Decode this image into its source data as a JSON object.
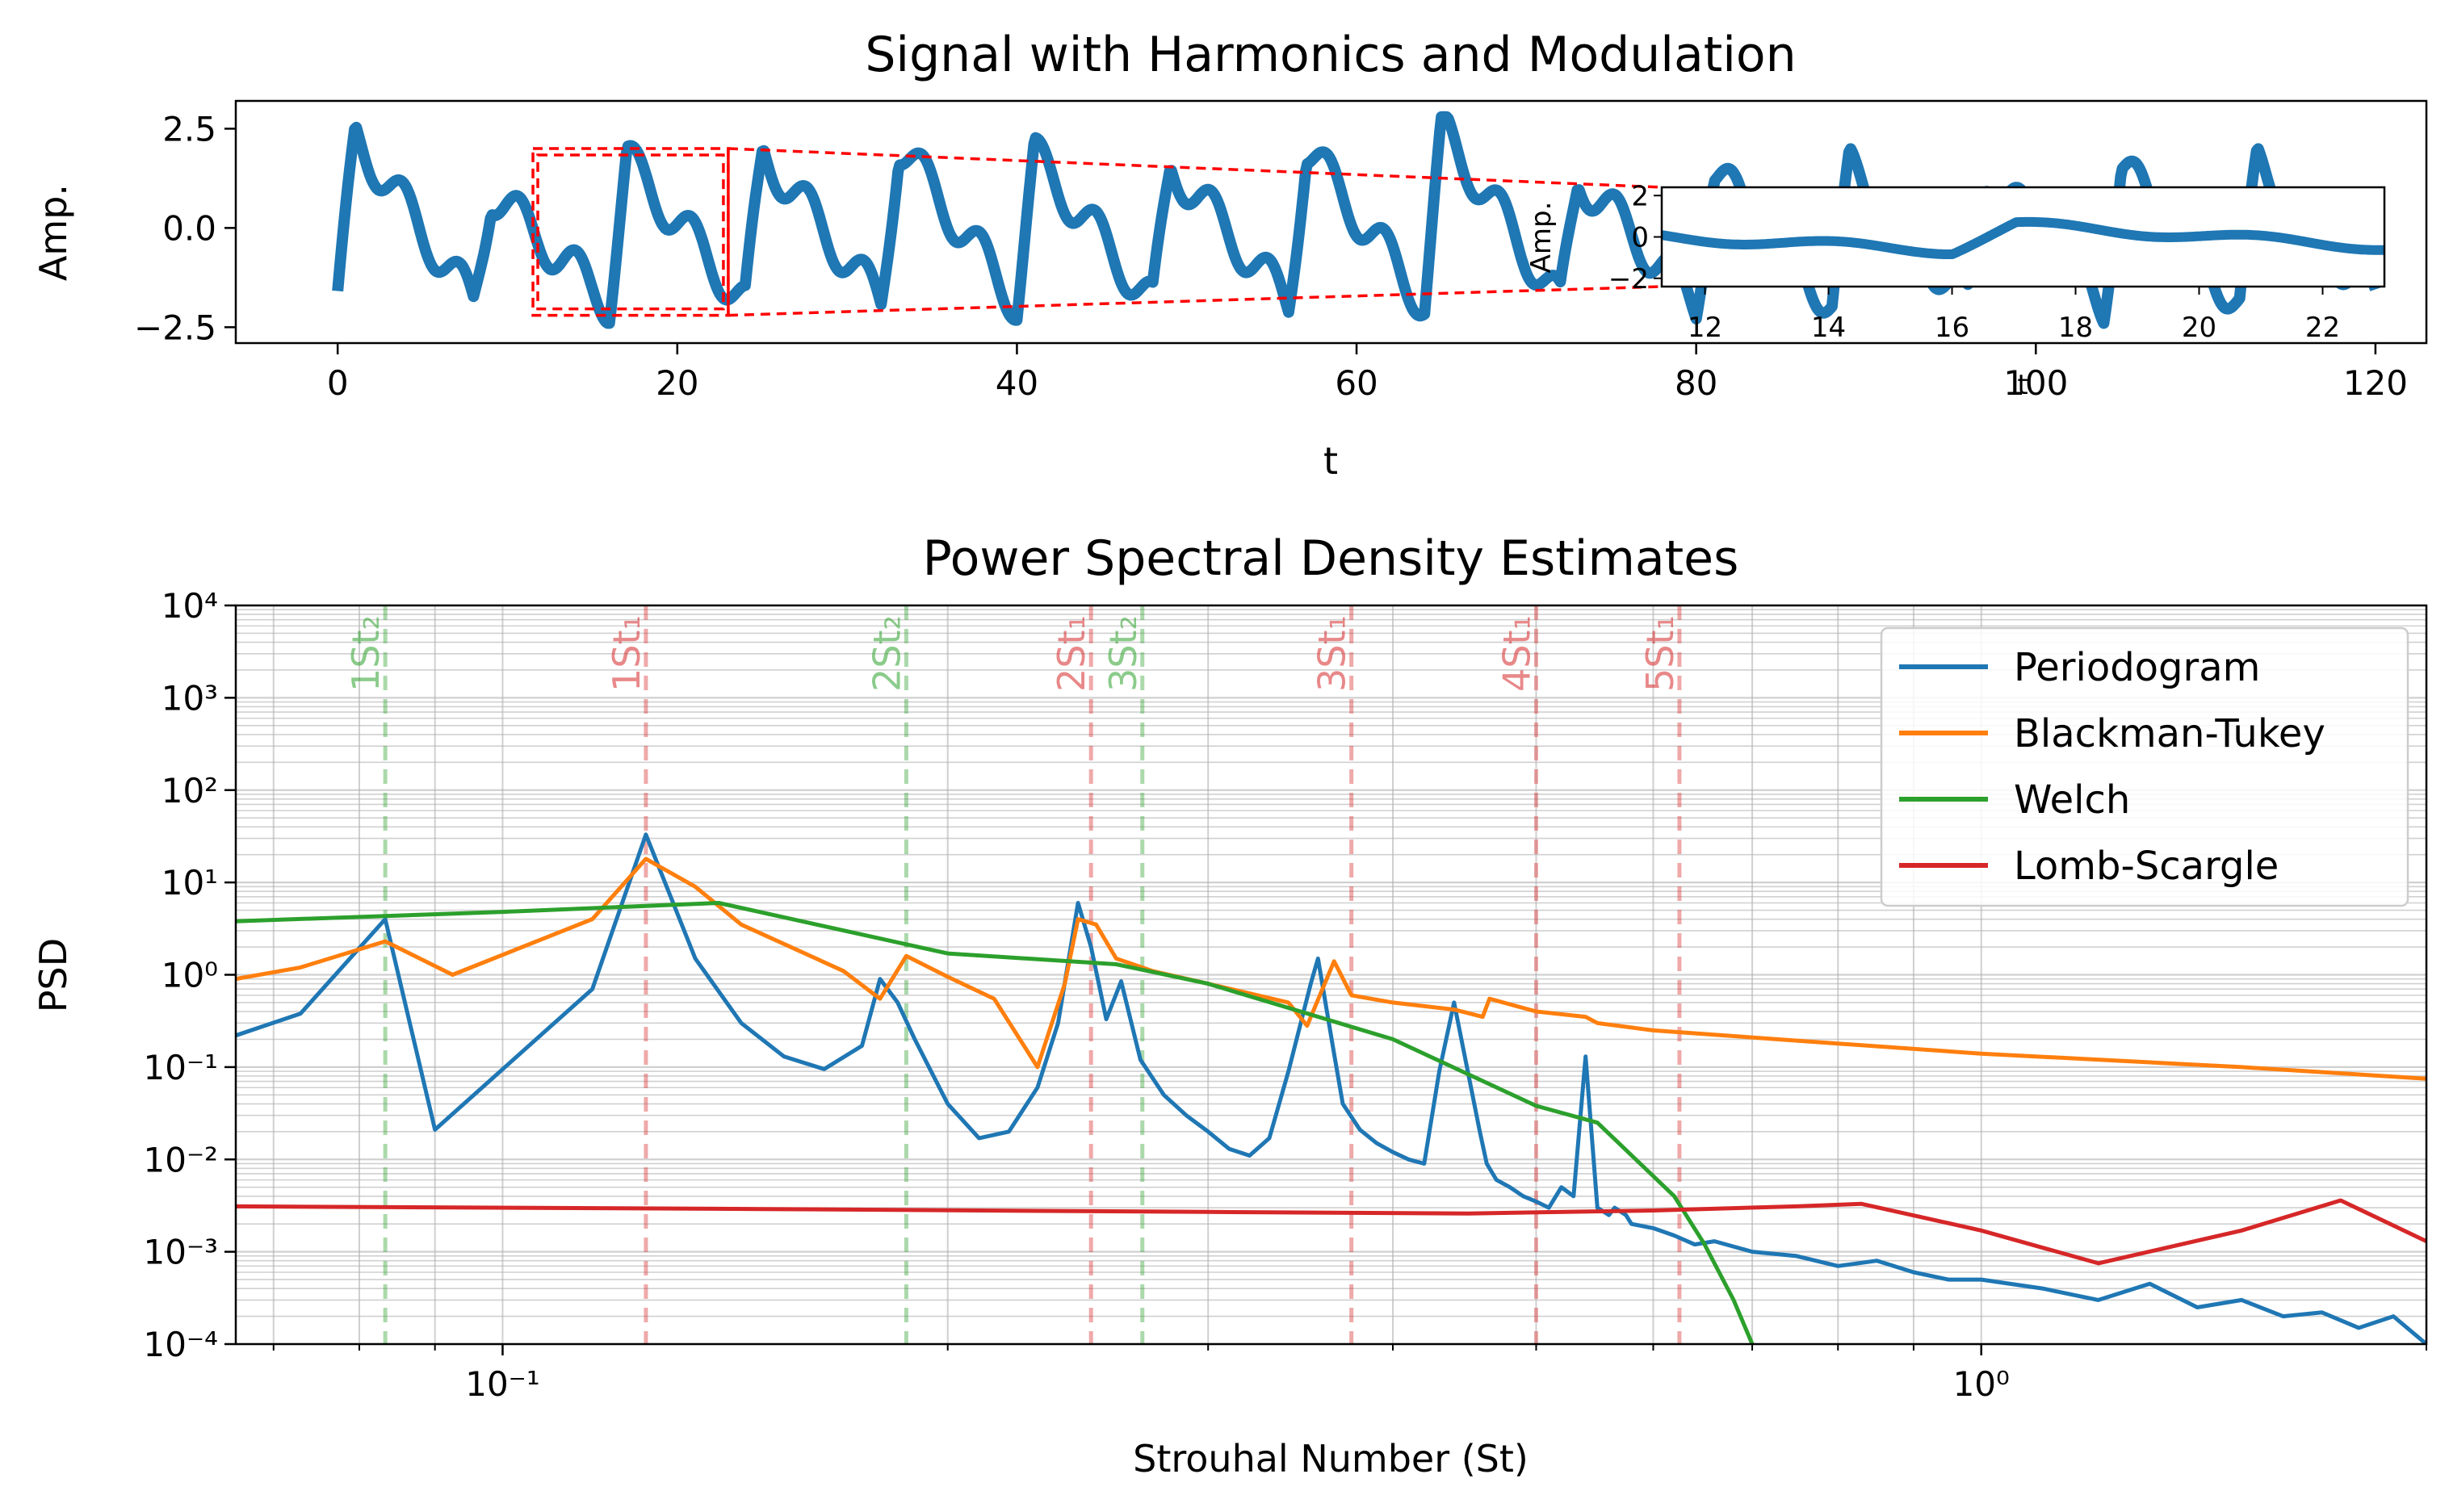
{
  "chart_data": [
    {
      "type": "line",
      "title": "Signal with Harmonics and Modulation",
      "xlabel": "t",
      "ylabel": "Amp.",
      "xlim": [
        -6,
        123
      ],
      "ylim": [
        -2.9,
        3.2
      ],
      "xticks": [
        0,
        20,
        40,
        60,
        80,
        100,
        120
      ],
      "yticks": [
        2.5,
        0.0,
        -2.5
      ],
      "xtick_labels": [
        "0",
        "20",
        "40",
        "60",
        "80",
        "100",
        "120"
      ],
      "ytick_labels": [
        "2.5",
        "0.0",
        "−2.5"
      ],
      "grid": false,
      "series": [
        {
          "color": "#1f77b4",
          "period": 8,
          "pulse_heights": [
            2.3,
            0.9,
            1.7,
            1.9,
            2.1,
            1.8,
            1.6,
            2.0,
            2.5,
            1.3,
            1.4,
            1.5,
            1.4,
            1.5,
            1.6,
            1.7
          ]
        }
      ],
      "zoom_region": {
        "x": [
          11.5,
          23
        ],
        "y": [
          -2.2,
          2.0
        ],
        "color": "#ff0000"
      },
      "inset": {
        "xlabel": "t",
        "ylabel": "Amp.",
        "xlim": [
          11.3,
          23.0
        ],
        "ylim": [
          -2.4,
          2.4
        ],
        "xticks": [
          12,
          14,
          16,
          18,
          20,
          22
        ],
        "yticks": [
          2,
          0,
          -2
        ],
        "xtick_labels": [
          "12",
          "14",
          "16",
          "18",
          "20",
          "22"
        ],
        "ytick_labels": [
          "2",
          "0",
          "−2"
        ]
      }
    },
    {
      "type": "line",
      "title": "Power Spectral Density Estimates",
      "xlabel": "Strouhal Number (St)",
      "ylabel": "PSD",
      "xscale": "log",
      "yscale": "log",
      "xlim": [
        0.066,
        2.0
      ],
      "ylim": [
        0.0001,
        10000
      ],
      "xtick_labels": [
        "10⁻¹",
        "10⁰"
      ],
      "ytick_labels": [
        "10⁴",
        "10³",
        "10²",
        "10¹",
        "10⁰",
        "10⁻¹",
        "10⁻²",
        "10⁻³",
        "10⁻⁴"
      ],
      "grid": true,
      "legend": "top-right",
      "series": [
        {
          "name": "Periodogram",
          "color": "#1f77b4",
          "x": [
            0.066,
            0.073,
            0.0833,
            0.09,
            0.115,
            0.125,
            0.135,
            0.145,
            0.155,
            0.165,
            0.175,
            0.18,
            0.185,
            0.19,
            0.2,
            0.21,
            0.22,
            0.23,
            0.2375,
            0.245,
            0.25,
            0.256,
            0.262,
            0.27,
            0.28,
            0.29,
            0.3,
            0.31,
            0.32,
            0.33,
            0.34,
            0.352,
            0.356,
            0.365,
            0.37,
            0.38,
            0.39,
            0.4,
            0.41,
            0.42,
            0.43,
            0.44,
            0.458,
            0.463,
            0.47,
            0.48,
            0.49,
            0.5,
            0.51,
            0.52,
            0.53,
            0.54,
            0.55,
            0.56,
            0.565,
            0.575,
            0.58,
            0.6,
            0.62,
            0.64,
            0.66,
            0.7,
            0.75,
            0.8,
            0.85,
            0.9,
            0.95,
            1.0,
            1.1,
            1.2,
            1.3,
            1.4,
            1.5,
            1.6,
            1.7,
            1.8,
            1.9,
            2.0
          ],
          "y": [
            0.22,
            0.38,
            4.0,
            0.021,
            0.7,
            33,
            1.5,
            0.3,
            0.13,
            0.095,
            0.17,
            0.9,
            0.5,
            0.2,
            0.04,
            0.017,
            0.02,
            0.06,
            0.3,
            6.0,
            2.0,
            0.33,
            0.85,
            0.12,
            0.05,
            0.03,
            0.02,
            0.013,
            0.011,
            0.017,
            0.09,
            0.8,
            1.5,
            0.14,
            0.04,
            0.021,
            0.015,
            0.012,
            0.01,
            0.009,
            0.09,
            0.5,
            0.02,
            0.009,
            0.006,
            0.005,
            0.004,
            0.0035,
            0.003,
            0.005,
            0.004,
            0.13,
            0.003,
            0.0025,
            0.003,
            0.0025,
            0.002,
            0.0018,
            0.0015,
            0.0012,
            0.0013,
            0.001,
            0.0009,
            0.0007,
            0.0008,
            0.0006,
            0.0005,
            0.0005,
            0.0004,
            0.0003,
            0.00045,
            0.00025,
            0.0003,
            0.0002,
            0.00022,
            0.00015,
            0.0002,
            0.0001
          ]
        },
        {
          "name": "Blackman-Tukey",
          "color": "#ff7f0e",
          "x": [
            0.066,
            0.073,
            0.0833,
            0.0925,
            0.115,
            0.125,
            0.135,
            0.145,
            0.17,
            0.18,
            0.1875,
            0.2,
            0.215,
            0.23,
            0.24,
            0.245,
            0.252,
            0.26,
            0.275,
            0.3,
            0.34,
            0.35,
            0.365,
            0.375,
            0.4,
            0.44,
            0.46,
            0.465,
            0.5,
            0.54,
            0.55,
            0.6,
            0.8,
            1.0,
            1.5,
            2.0
          ],
          "y": [
            0.9,
            1.2,
            2.3,
            1.0,
            4.0,
            18,
            9.0,
            3.5,
            1.1,
            0.55,
            1.6,
            0.95,
            0.55,
            0.1,
            0.8,
            4.0,
            3.5,
            1.5,
            1.1,
            0.8,
            0.5,
            0.28,
            1.4,
            0.6,
            0.5,
            0.42,
            0.35,
            0.55,
            0.4,
            0.35,
            0.3,
            0.25,
            0.18,
            0.14,
            0.1,
            0.075
          ]
        },
        {
          "name": "Welch",
          "color": "#2ca02c",
          "x": [
            0.066,
            0.1,
            0.14,
            0.2,
            0.26,
            0.3,
            0.4,
            0.5,
            0.55,
            0.62,
            0.65,
            0.68,
            0.7
          ],
          "y": [
            3.8,
            4.8,
            6.0,
            1.7,
            1.3,
            0.8,
            0.2,
            0.038,
            0.025,
            0.004,
            0.0012,
            0.0003,
            0.0001
          ]
        },
        {
          "name": "Lomb-Scargle",
          "color": "#d62728",
          "x": [
            0.066,
            0.15,
            0.3,
            0.45,
            0.6,
            0.75,
            0.83,
            1.0,
            1.2,
            1.5,
            1.75,
            2.0
          ],
          "y": [
            0.0031,
            0.0029,
            0.0027,
            0.0026,
            0.0028,
            0.0031,
            0.0033,
            0.0017,
            0.00075,
            0.0017,
            0.0036,
            0.0013
          ]
        }
      ],
      "reference_lines": [
        {
          "label": "1St₂",
          "x": 0.0833,
          "color": "#2ca02c"
        },
        {
          "label": "1St₁",
          "x": 0.125,
          "color": "#d62728"
        },
        {
          "label": "2St₂",
          "x": 0.1875,
          "color": "#2ca02c"
        },
        {
          "label": "2St₁",
          "x": 0.25,
          "color": "#d62728"
        },
        {
          "label": "3St₂",
          "x": 0.2708,
          "color": "#2ca02c"
        },
        {
          "label": "3St₁",
          "x": 0.375,
          "color": "#d62728"
        },
        {
          "label": "4St₁",
          "x": 0.5,
          "color": "#d62728"
        },
        {
          "label": "5St₁",
          "x": 0.625,
          "color": "#d62728"
        }
      ]
    }
  ]
}
